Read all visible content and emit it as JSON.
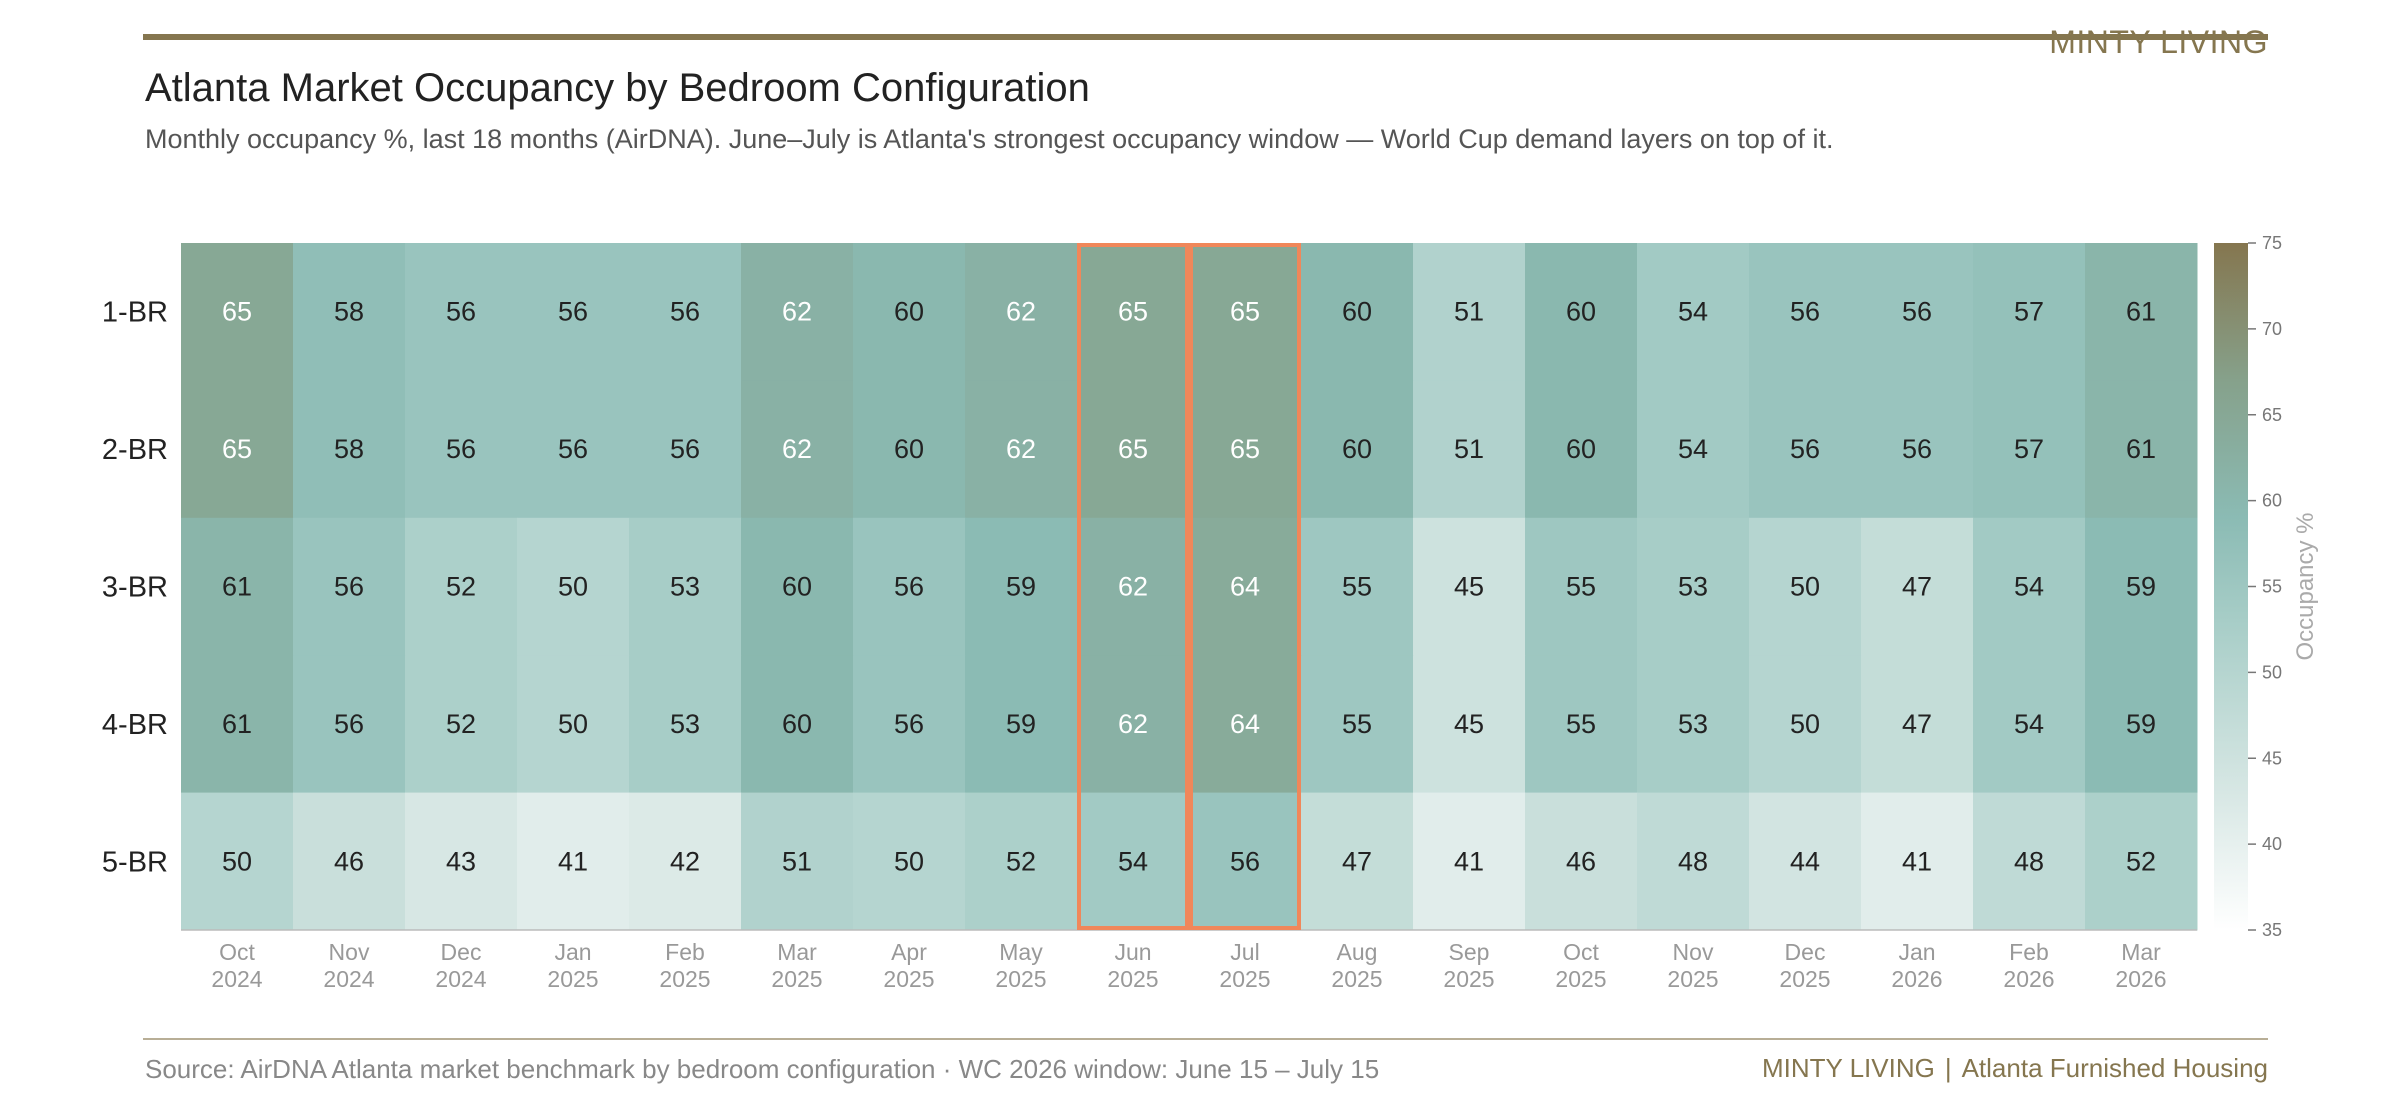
{
  "header": {
    "brand": "MINTY LIVING",
    "title": "Atlanta Market Occupancy by Bedroom Configuration",
    "subtitle": "Monthly occupancy %, last 18 months (AirDNA). June–July is Atlanta's strongest occupancy window — World Cup demand layers on top of it."
  },
  "footer": {
    "source": "Source: AirDNA Atlanta market benchmark by bedroom configuration · WC 2026 window: June 15 – July 15",
    "brand": "MINTY LIVING",
    "separator": "|",
    "tagline": "Atlanta Furnished Housing"
  },
  "chart_data": {
    "type": "heatmap",
    "title": "Atlanta Market Occupancy by Bedroom Configuration",
    "subtitle": "Monthly occupancy %, last 18 months (AirDNA). June–July is Atlanta's strongest occupancy window — World Cup demand layers on top of it.",
    "rows": [
      "1-BR",
      "2-BR",
      "3-BR",
      "4-BR",
      "5-BR"
    ],
    "columns": [
      [
        "Oct",
        "2024"
      ],
      [
        "Nov",
        "2024"
      ],
      [
        "Dec",
        "2024"
      ],
      [
        "Jan",
        "2025"
      ],
      [
        "Feb",
        "2025"
      ],
      [
        "Mar",
        "2025"
      ],
      [
        "Apr",
        "2025"
      ],
      [
        "May",
        "2025"
      ],
      [
        "Jun",
        "2025"
      ],
      [
        "Jul",
        "2025"
      ],
      [
        "Aug",
        "2025"
      ],
      [
        "Sep",
        "2025"
      ],
      [
        "Oct",
        "2025"
      ],
      [
        "Nov",
        "2025"
      ],
      [
        "Dec",
        "2025"
      ],
      [
        "Jan",
        "2026"
      ],
      [
        "Feb",
        "2026"
      ],
      [
        "Mar",
        "2026"
      ]
    ],
    "values": [
      [
        65,
        58,
        56,
        56,
        56,
        62,
        60,
        62,
        65,
        65,
        60,
        51,
        60,
        54,
        56,
        56,
        57,
        61
      ],
      [
        65,
        58,
        56,
        56,
        56,
        62,
        60,
        62,
        65,
        65,
        60,
        51,
        60,
        54,
        56,
        56,
        57,
        61
      ],
      [
        61,
        56,
        52,
        50,
        53,
        60,
        56,
        59,
        62,
        64,
        55,
        45,
        55,
        53,
        50,
        47,
        54,
        59
      ],
      [
        61,
        56,
        52,
        50,
        53,
        60,
        56,
        59,
        62,
        64,
        55,
        45,
        55,
        53,
        50,
        47,
        54,
        59
      ],
      [
        50,
        46,
        43,
        41,
        42,
        51,
        50,
        52,
        54,
        56,
        47,
        41,
        46,
        48,
        44,
        41,
        48,
        52
      ]
    ],
    "highlight_columns": [
      8,
      9
    ],
    "colorbar": {
      "label": "Occupancy %",
      "min": 35,
      "max": 75,
      "ticks": [
        75,
        70,
        65,
        60,
        55,
        50,
        45,
        40,
        35
      ]
    },
    "colors": {
      "scale": [
        "#ffffff",
        "#d7e7e4",
        "#a7cdc7",
        "#8bbbb4",
        "#86a18b",
        "#85764f"
      ],
      "highlight": "#f0875a",
      "dark_text": "#222222",
      "light_text": "#ffffff"
    }
  }
}
